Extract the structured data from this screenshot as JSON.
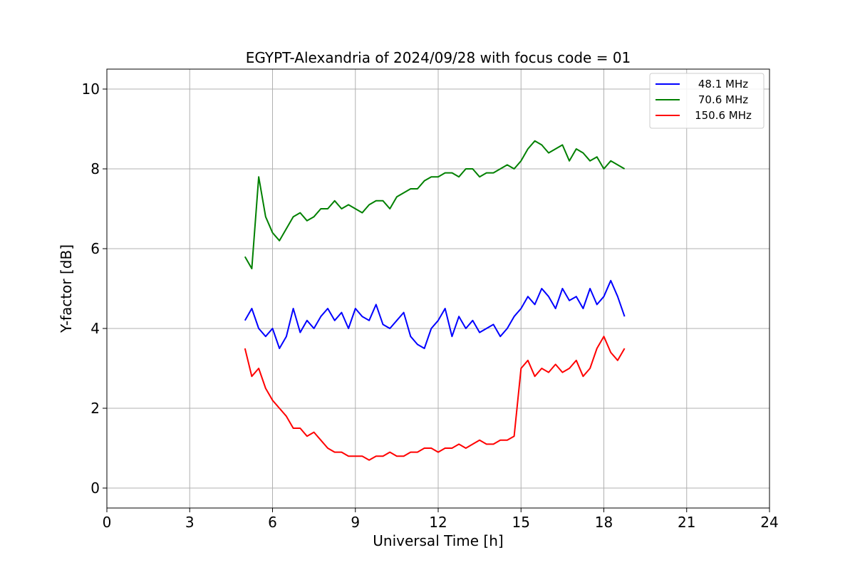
{
  "chart_data": {
    "type": "line",
    "title": "EGYPT-Alexandria of 2024/09/28 with focus code = 01",
    "xlabel": "Universal Time [h]",
    "ylabel": "Y-factor [dB]",
    "xlim": [
      0,
      24
    ],
    "ylim": [
      -0.5,
      10.5
    ],
    "xticks": [
      "0",
      "3",
      "6",
      "9",
      "12",
      "15",
      "18",
      "21",
      "24"
    ],
    "yticks": [
      "0",
      "2",
      "4",
      "6",
      "8",
      "10"
    ],
    "grid": true,
    "legend_position": "top-right",
    "series": [
      {
        "name": "48.1 MHz",
        "color": "#0000ff",
        "x": [
          5.0,
          5.25,
          5.5,
          5.75,
          6.0,
          6.25,
          6.5,
          6.75,
          7.0,
          7.25,
          7.5,
          7.75,
          8.0,
          8.25,
          8.5,
          8.75,
          9.0,
          9.25,
          9.5,
          9.75,
          10.0,
          10.25,
          10.5,
          10.75,
          11.0,
          11.25,
          11.5,
          11.75,
          12.0,
          12.25,
          12.5,
          12.75,
          13.0,
          13.25,
          13.5,
          13.75,
          14.0,
          14.25,
          14.5,
          14.75,
          15.0,
          15.25,
          15.5,
          15.75,
          16.0,
          16.25,
          16.5,
          16.75,
          17.0,
          17.25,
          17.5,
          17.75,
          18.0,
          18.25,
          18.5,
          18.75
        ],
        "y": [
          4.2,
          4.5,
          4.0,
          3.8,
          4.0,
          3.5,
          3.8,
          4.5,
          3.9,
          4.2,
          4.0,
          4.3,
          4.5,
          4.2,
          4.4,
          4.0,
          4.5,
          4.3,
          4.2,
          4.6,
          4.1,
          4.0,
          4.2,
          4.4,
          3.8,
          3.6,
          3.5,
          4.0,
          4.2,
          4.5,
          3.8,
          4.3,
          4.0,
          4.2,
          3.9,
          4.0,
          4.1,
          3.8,
          4.0,
          4.3,
          4.5,
          4.8,
          4.6,
          5.0,
          4.8,
          4.5,
          5.0,
          4.7,
          4.8,
          4.5,
          5.0,
          4.6,
          4.8,
          5.2,
          4.8,
          4.3
        ]
      },
      {
        "name": "70.6 MHz",
        "color": "#008000",
        "x": [
          5.0,
          5.25,
          5.5,
          5.75,
          6.0,
          6.25,
          6.5,
          6.75,
          7.0,
          7.25,
          7.5,
          7.75,
          8.0,
          8.25,
          8.5,
          8.75,
          9.0,
          9.25,
          9.5,
          9.75,
          10.0,
          10.25,
          10.5,
          10.75,
          11.0,
          11.25,
          11.5,
          11.75,
          12.0,
          12.25,
          12.5,
          12.75,
          13.0,
          13.25,
          13.5,
          13.75,
          14.0,
          14.25,
          14.5,
          14.75,
          15.0,
          15.25,
          15.5,
          15.75,
          16.0,
          16.25,
          16.5,
          16.75,
          17.0,
          17.25,
          17.5,
          17.75,
          18.0,
          18.25,
          18.5,
          18.75
        ],
        "y": [
          5.8,
          5.5,
          7.8,
          6.8,
          6.4,
          6.2,
          6.5,
          6.8,
          6.9,
          6.7,
          6.8,
          7.0,
          7.0,
          7.2,
          7.0,
          7.1,
          7.0,
          6.9,
          7.1,
          7.2,
          7.2,
          7.0,
          7.3,
          7.4,
          7.5,
          7.5,
          7.7,
          7.8,
          7.8,
          7.9,
          7.9,
          7.8,
          8.0,
          8.0,
          7.8,
          7.9,
          7.9,
          8.0,
          8.1,
          8.0,
          8.2,
          8.5,
          8.7,
          8.6,
          8.4,
          8.5,
          8.6,
          8.2,
          8.5,
          8.4,
          8.2,
          8.3,
          8.0,
          8.2,
          8.1,
          8.0
        ]
      },
      {
        "name": "150.6 MHz",
        "color": "#ff0000",
        "x": [
          5.0,
          5.25,
          5.5,
          5.75,
          6.0,
          6.25,
          6.5,
          6.75,
          7.0,
          7.25,
          7.5,
          7.75,
          8.0,
          8.25,
          8.5,
          8.75,
          9.0,
          9.25,
          9.5,
          9.75,
          10.0,
          10.25,
          10.5,
          10.75,
          11.0,
          11.25,
          11.5,
          11.75,
          12.0,
          12.25,
          12.5,
          12.75,
          13.0,
          13.25,
          13.5,
          13.75,
          14.0,
          14.25,
          14.5,
          14.75,
          15.0,
          15.25,
          15.5,
          15.75,
          16.0,
          16.25,
          16.5,
          16.75,
          17.0,
          17.25,
          17.5,
          17.75,
          18.0,
          18.25,
          18.5,
          18.75
        ],
        "y": [
          3.5,
          2.8,
          3.0,
          2.5,
          2.2,
          2.0,
          1.8,
          1.5,
          1.5,
          1.3,
          1.4,
          1.2,
          1.0,
          0.9,
          0.9,
          0.8,
          0.8,
          0.8,
          0.7,
          0.8,
          0.8,
          0.9,
          0.8,
          0.8,
          0.9,
          0.9,
          1.0,
          1.0,
          0.9,
          1.0,
          1.0,
          1.1,
          1.0,
          1.1,
          1.2,
          1.1,
          1.1,
          1.2,
          1.2,
          1.3,
          3.0,
          3.2,
          2.8,
          3.0,
          2.9,
          3.1,
          2.9,
          3.0,
          3.2,
          2.8,
          3.0,
          3.5,
          3.8,
          3.4,
          3.2,
          3.5
        ]
      }
    ]
  }
}
